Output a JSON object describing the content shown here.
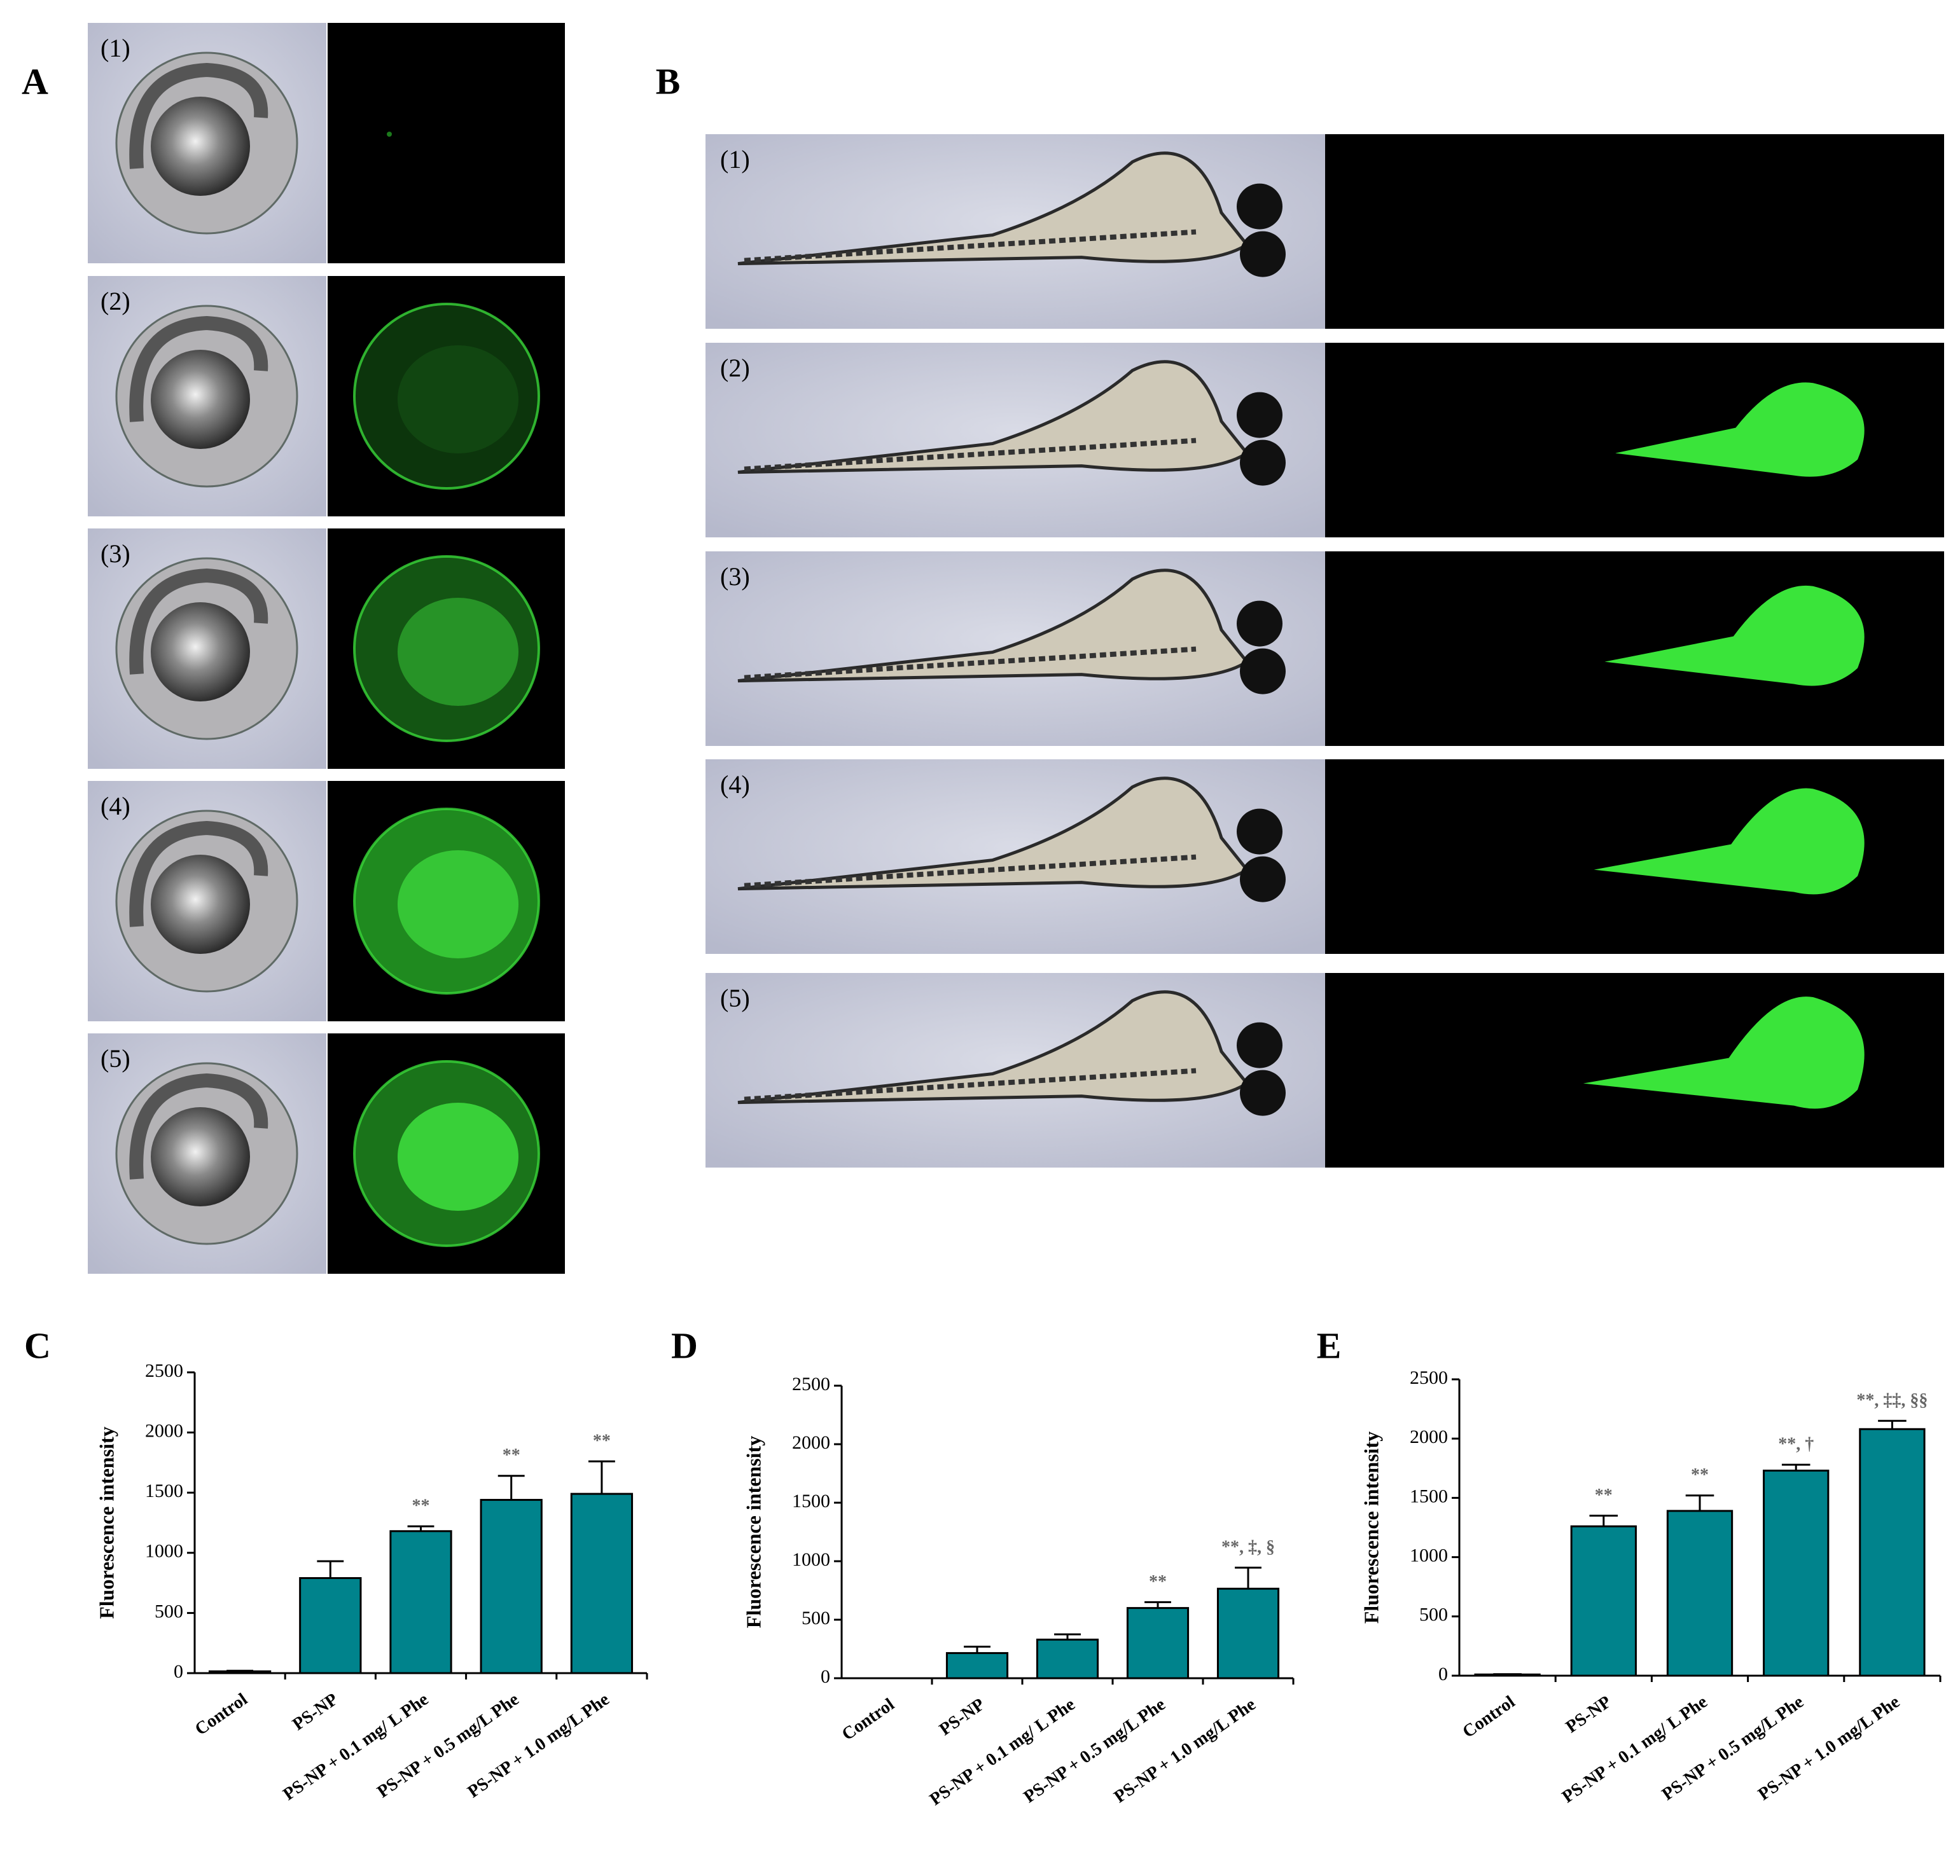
{
  "figure": {
    "panel_labels": [
      "A",
      "B",
      "C",
      "D",
      "E"
    ],
    "panel_a_labels": [
      "(1)",
      "(2)",
      "(3)",
      "(4)",
      "(5)"
    ],
    "panel_b_labels": [
      "(1)",
      "(2)",
      "(3)",
      "(4)",
      "(5)"
    ]
  },
  "chart_data": [
    {
      "type": "bar",
      "ylabel": "Fluorescence intensity",
      "categories": [
        "Control",
        "PS-NP",
        "PS-NP + 0.1 mg/ L Phe",
        "PS-NP + 0.5 mg/L  Phe",
        "PS-NP + 1.0 mg/L Phe"
      ],
      "values": [
        15,
        790,
        1180,
        1440,
        1490
      ],
      "errors": [
        5,
        140,
        40,
        200,
        270
      ],
      "annotations": [
        null,
        null,
        "**",
        "**",
        "**"
      ],
      "color": "#00838c",
      "ylim": [
        0,
        2500
      ],
      "yticks": [
        0,
        500,
        1000,
        1500,
        2000,
        2500
      ]
    },
    {
      "type": "bar",
      "ylabel": "Fluorescence intensity",
      "categories": [
        "Control",
        "PS-NP",
        "PS-NP + 0.1 mg/ L Phe",
        "PS-NP + 0.5 mg/L  Phe",
        "PS-NP + 1.0 mg/L Phe"
      ],
      "values": [
        0,
        215,
        330,
        600,
        765
      ],
      "errors": [
        0,
        55,
        45,
        50,
        180
      ],
      "annotations": [
        null,
        null,
        null,
        "**",
        "**, ‡, §"
      ],
      "color": "#00838c",
      "ylim": [
        0,
        2500
      ],
      "yticks": [
        0,
        500,
        1000,
        1500,
        2000,
        2500
      ]
    },
    {
      "type": "bar",
      "ylabel": "Fluorescence intensity",
      "categories": [
        "Control",
        "PS-NP",
        "PS-NP + 0.1 mg/ L Phe",
        "PS-NP + 0.5 mg/L  Phe",
        "PS-NP + 1.0 mg/L Phe"
      ],
      "values": [
        10,
        1260,
        1390,
        1730,
        2080
      ],
      "errors": [
        3,
        90,
        130,
        50,
        70
      ],
      "annotations": [
        null,
        "**",
        "**",
        "**, †",
        "**, ‡‡, §§"
      ],
      "color": "#00838c",
      "ylim": [
        0,
        2500
      ],
      "yticks": [
        0,
        500,
        1000,
        1500,
        2000,
        2500
      ]
    }
  ]
}
